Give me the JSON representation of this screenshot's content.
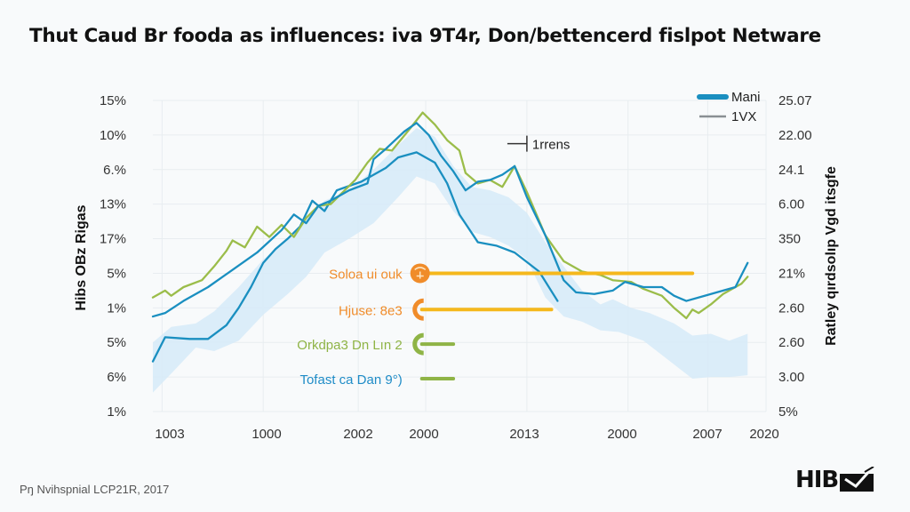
{
  "header": {
    "title": "Thut Caud Br fooda as influences: iva 9T4r, Don/bettencerd fislpot Netware"
  },
  "footer": {
    "source": "Pŋ Nvihspnial   LCP21R, 2017",
    "logo_text": "HIB",
    "logo_icon": "plane-checkmark-icon"
  },
  "colors": {
    "main": "#1a8fc0",
    "secondary": "#9bbd4a",
    "band": "#d6eaf8",
    "orange": "#f08c2a",
    "yellow": "#f5b81c",
    "green": "#8fb446",
    "blue_text": "#1f8cc7",
    "grid": "#e8edf0"
  },
  "chart_data": {
    "type": "line",
    "title": "Thut Caud Br fooda as influences: iva 9T4r, Don/bettencerd fislpot Netware",
    "xlabel": "",
    "ylabel": "Hibs OBz Rigas",
    "y2label": "Ratley qırdsolıp Vgd itsgfe",
    "x_tick_labels": [
      "1003",
      "1000",
      "2002",
      "2000",
      "2013",
      "2000",
      "2007",
      "2020"
    ],
    "y_tick_labels": [
      "1%",
      "6%",
      "5%",
      "1%",
      "5%",
      "17%",
      "13%",
      "6.%",
      "10%",
      "15%"
    ],
    "y2_tick_labels": [
      "5%",
      "3.00",
      "2.60",
      "2.60",
      "21%",
      "350",
      "6.00",
      "24.1",
      "22.00",
      "25.07"
    ],
    "y_scale_note": "values expressed as position on tick index scale (0 = bottom tick, 9 = top tick)",
    "x_range": [
      0,
      100
    ],
    "y_range": [
      0,
      9
    ],
    "grid": true,
    "legend_position": "top-right",
    "legend": [
      {
        "name": "Mani",
        "style": "thick-blue"
      },
      {
        "name": "1VX",
        "style": "thin-gray"
      }
    ],
    "series": [
      {
        "name": "Mani",
        "color_key": "main",
        "points": [
          [
            0,
            2.75
          ],
          [
            2,
            2.85
          ],
          [
            5,
            3.2
          ],
          [
            9,
            3.6
          ],
          [
            13,
            4.1
          ],
          [
            17,
            4.6
          ],
          [
            21,
            5.25
          ],
          [
            23,
            5.7
          ],
          [
            25,
            5.45
          ],
          [
            27,
            5.95
          ],
          [
            29,
            6.1
          ],
          [
            32,
            6.4
          ],
          [
            35,
            6.6
          ],
          [
            36,
            7.3
          ],
          [
            38,
            7.6
          ],
          [
            41,
            8.1
          ],
          [
            43,
            8.35
          ],
          [
            45,
            8.0
          ],
          [
            47,
            7.4
          ],
          [
            49,
            6.95
          ],
          [
            51,
            6.4
          ],
          [
            53,
            6.65
          ],
          [
            55,
            6.7
          ],
          [
            57,
            6.85
          ],
          [
            59,
            7.1
          ],
          [
            61,
            6.2
          ],
          [
            64,
            5.1
          ],
          [
            67,
            3.8
          ],
          [
            69,
            3.45
          ],
          [
            72,
            3.4
          ],
          [
            75,
            3.5
          ],
          [
            77,
            3.75
          ],
          [
            80,
            3.6
          ],
          [
            83,
            3.6
          ],
          [
            85,
            3.35
          ],
          [
            87,
            3.2
          ],
          [
            90,
            3.35
          ],
          [
            93,
            3.5
          ],
          [
            95,
            3.6
          ],
          [
            97,
            4.3
          ]
        ]
      },
      {
        "name": "Mani-lower",
        "color_key": "main",
        "points": [
          [
            0,
            1.45
          ],
          [
            2,
            2.15
          ],
          [
            6,
            2.1
          ],
          [
            9,
            2.1
          ],
          [
            12,
            2.5
          ],
          [
            14,
            3.0
          ],
          [
            16,
            3.6
          ],
          [
            18,
            4.3
          ],
          [
            20,
            4.7
          ],
          [
            22,
            5.0
          ],
          [
            24,
            5.35
          ],
          [
            26,
            6.1
          ],
          [
            28,
            5.8
          ],
          [
            30,
            6.4
          ],
          [
            34,
            6.65
          ],
          [
            38,
            7.05
          ],
          [
            40,
            7.35
          ],
          [
            43,
            7.5
          ],
          [
            46,
            7.2
          ],
          [
            48,
            6.6
          ],
          [
            50,
            5.7
          ],
          [
            53,
            4.9
          ],
          [
            56,
            4.8
          ],
          [
            59,
            4.6
          ],
          [
            63,
            4.05
          ],
          [
            66,
            3.2
          ]
        ]
      },
      {
        "name": "1VX",
        "color_key": "secondary",
        "points": [
          [
            0,
            3.3
          ],
          [
            2,
            3.5
          ],
          [
            3,
            3.35
          ],
          [
            5,
            3.6
          ],
          [
            8,
            3.8
          ],
          [
            10,
            4.2
          ],
          [
            12,
            4.65
          ],
          [
            13,
            4.95
          ],
          [
            15,
            4.75
          ],
          [
            17,
            5.35
          ],
          [
            19,
            5.05
          ],
          [
            21,
            5.4
          ],
          [
            23,
            5.05
          ],
          [
            25,
            5.6
          ],
          [
            27,
            5.95
          ],
          [
            29,
            6.0
          ],
          [
            31,
            6.35
          ],
          [
            33,
            6.7
          ],
          [
            35,
            7.2
          ],
          [
            37,
            7.6
          ],
          [
            39,
            7.55
          ],
          [
            42,
            8.2
          ],
          [
            44,
            8.65
          ],
          [
            46,
            8.3
          ],
          [
            48,
            7.85
          ],
          [
            50,
            7.55
          ],
          [
            51,
            6.9
          ],
          [
            53,
            6.6
          ],
          [
            55,
            6.7
          ],
          [
            57,
            6.5
          ],
          [
            59,
            7.1
          ],
          [
            61,
            6.35
          ],
          [
            64,
            5.1
          ],
          [
            67,
            4.35
          ],
          [
            70,
            4.05
          ],
          [
            73,
            3.95
          ],
          [
            75,
            3.8
          ],
          [
            78,
            3.75
          ],
          [
            80,
            3.55
          ],
          [
            83,
            3.35
          ],
          [
            85,
            3.0
          ],
          [
            87,
            2.7
          ],
          [
            88,
            2.95
          ],
          [
            89,
            2.85
          ],
          [
            91,
            3.1
          ],
          [
            93,
            3.4
          ],
          [
            96,
            3.7
          ],
          [
            97,
            3.9
          ]
        ]
      }
    ],
    "band": {
      "name": "range",
      "color_key": "band",
      "upper": [
        [
          0,
          2.0
        ],
        [
          3,
          2.45
        ],
        [
          7,
          2.55
        ],
        [
          10,
          2.9
        ],
        [
          14,
          3.6
        ],
        [
          18,
          4.4
        ],
        [
          22,
          5.0
        ],
        [
          25,
          5.6
        ],
        [
          28,
          6.1
        ],
        [
          32,
          6.4
        ],
        [
          36,
          7.0
        ],
        [
          40,
          7.7
        ],
        [
          43,
          8.2
        ],
        [
          46,
          7.95
        ],
        [
          49,
          7.1
        ],
        [
          52,
          6.5
        ],
        [
          55,
          6.4
        ],
        [
          58,
          6.2
        ],
        [
          61,
          5.75
        ],
        [
          64,
          4.9
        ],
        [
          67,
          4.2
        ],
        [
          70,
          3.5
        ],
        [
          73,
          3.1
        ],
        [
          75,
          3.25
        ],
        [
          78,
          3.0
        ],
        [
          81,
          2.85
        ],
        [
          85,
          2.55
        ],
        [
          88,
          2.2
        ],
        [
          91,
          2.25
        ],
        [
          94,
          2.05
        ],
        [
          97,
          2.25
        ]
      ],
      "lower": [
        [
          0,
          0.55
        ],
        [
          3,
          1.1
        ],
        [
          7,
          1.85
        ],
        [
          10,
          1.75
        ],
        [
          14,
          2.05
        ],
        [
          18,
          2.8
        ],
        [
          22,
          3.4
        ],
        [
          25,
          3.9
        ],
        [
          28,
          4.6
        ],
        [
          32,
          5.0
        ],
        [
          36,
          5.45
        ],
        [
          40,
          6.2
        ],
        [
          43,
          6.8
        ],
        [
          46,
          6.6
        ],
        [
          49,
          5.8
        ],
        [
          52,
          5.2
        ],
        [
          55,
          5.05
        ],
        [
          58,
          4.8
        ],
        [
          61,
          4.4
        ],
        [
          64,
          3.3
        ],
        [
          67,
          2.75
        ],
        [
          70,
          2.6
        ],
        [
          73,
          2.35
        ],
        [
          76,
          2.3
        ],
        [
          80,
          2.05
        ],
        [
          84,
          1.5
        ],
        [
          88,
          0.95
        ],
        [
          91,
          1.0
        ],
        [
          94,
          1.0
        ],
        [
          97,
          1.05
        ]
      ]
    },
    "annotations": [
      {
        "label": "1rrens",
        "type": "bracket-marker",
        "x": 61,
        "y": 7.75,
        "color_key": "axis"
      },
      {
        "label": "Soloa ui ouk",
        "type": "hline",
        "x_start": 43,
        "x_end": 88,
        "y": 4.0,
        "color_key": "yellow",
        "text_color_key": "orange",
        "icon": "brain-circle-icon"
      },
      {
        "label": "Hjuse: 8e3",
        "type": "hline",
        "x_start": 43,
        "x_end": 65,
        "y": 2.95,
        "color_key": "yellow",
        "text_color_key": "orange",
        "icon": "half-ring-icon"
      },
      {
        "label": "Orkdpa3 Dn Lın 2",
        "type": "hline",
        "x_start": 43,
        "x_end": 49,
        "y": 1.95,
        "color_key": "green",
        "text_color_key": "green",
        "icon": "half-ring-icon"
      },
      {
        "label": "Tofast ca Dan 9°)",
        "type": "hline",
        "x_start": 43,
        "x_end": 49,
        "y": 0.95,
        "color_key": "green",
        "text_color_key": "blue_text",
        "icon": "none"
      }
    ]
  }
}
